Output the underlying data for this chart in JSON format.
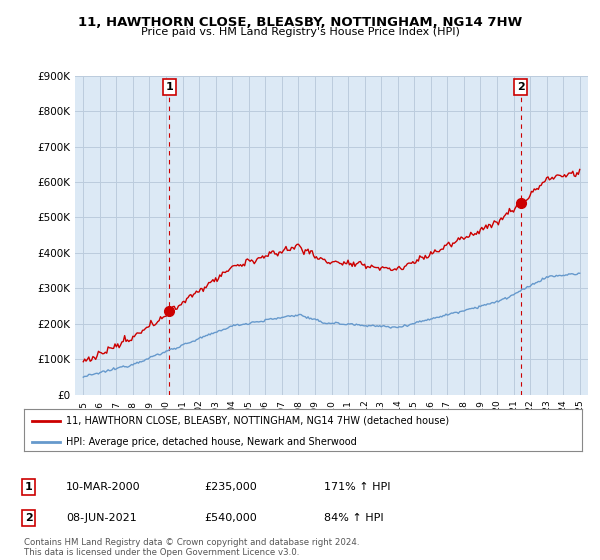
{
  "title": "11, HAWTHORN CLOSE, BLEASBY, NOTTINGHAM, NG14 7HW",
  "subtitle": "Price paid vs. HM Land Registry's House Price Index (HPI)",
  "ylim": [
    0,
    900000
  ],
  "yticks": [
    0,
    100000,
    200000,
    300000,
    400000,
    500000,
    600000,
    700000,
    800000,
    900000
  ],
  "ytick_labels": [
    "£0",
    "£100K",
    "£200K",
    "£300K",
    "£400K",
    "£500K",
    "£600K",
    "£700K",
    "£800K",
    "£900K"
  ],
  "sale1_date": 2000.19,
  "sale1_price": 235000,
  "sale1_label": "1",
  "sale2_date": 2021.44,
  "sale2_price": 540000,
  "sale2_label": "2",
  "hpi_color": "#6699cc",
  "price_color": "#cc0000",
  "marker_color": "#cc0000",
  "vline_color": "#cc0000",
  "plot_bg_color": "#dce9f5",
  "legend_entry1": "11, HAWTHORN CLOSE, BLEASBY, NOTTINGHAM, NG14 7HW (detached house)",
  "legend_entry2": "HPI: Average price, detached house, Newark and Sherwood",
  "table_rows": [
    {
      "num": "1",
      "date": "10-MAR-2000",
      "price": "£235,000",
      "hpi": "171% ↑ HPI"
    },
    {
      "num": "2",
      "date": "08-JUN-2021",
      "price": "£540,000",
      "hpi": "84% ↑ HPI"
    }
  ],
  "footnote": "Contains HM Land Registry data © Crown copyright and database right 2024.\nThis data is licensed under the Open Government Licence v3.0.",
  "background_color": "#ffffff",
  "grid_color": "#bbccdd"
}
